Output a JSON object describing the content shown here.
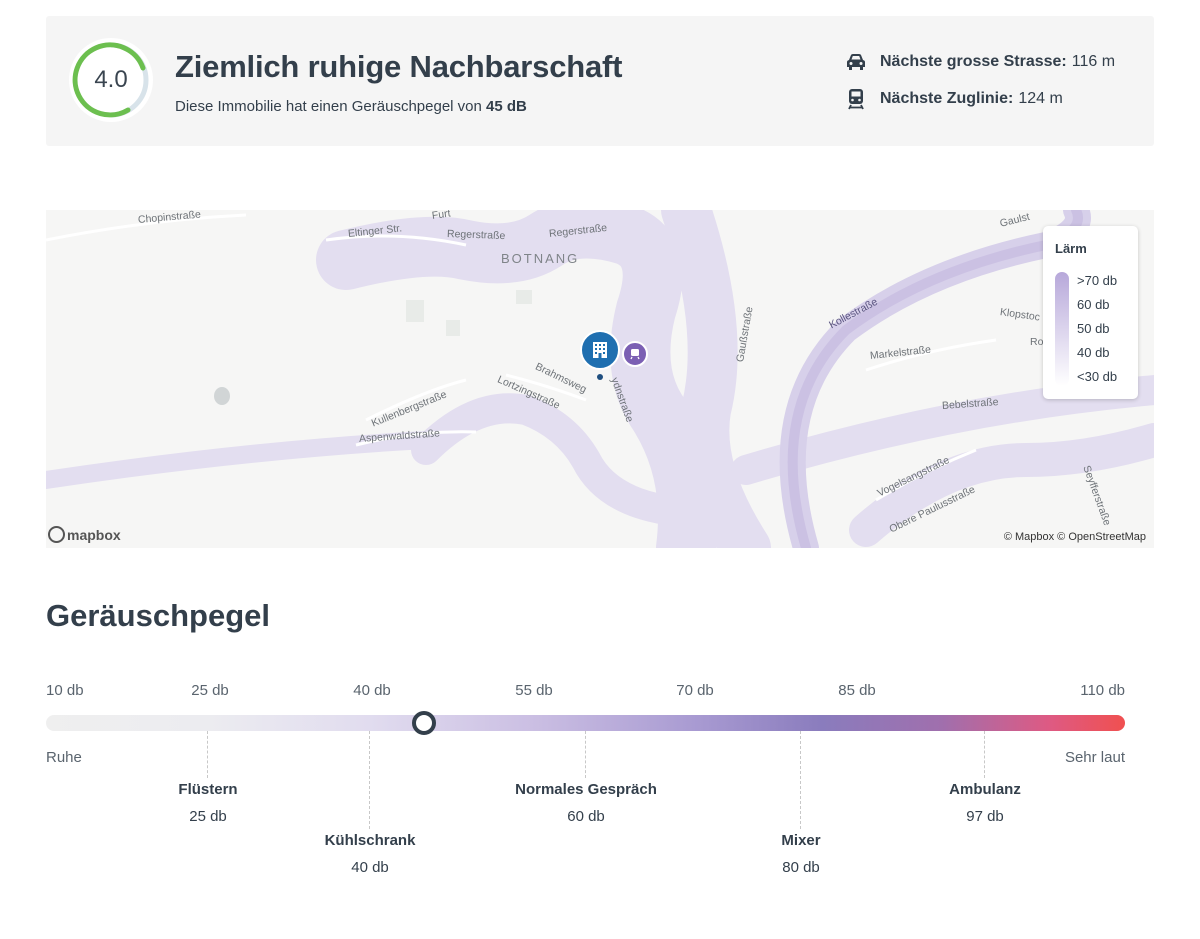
{
  "header": {
    "score": "4.0",
    "title": "Ziemlich ruhige Nachbarschaft",
    "subtitle_prefix": "Diese Immobilie hat einen Geräuschpegel von",
    "subtitle_value": "45 dB",
    "road": {
      "icon": "car-icon",
      "label": "Nächste grosse Strasse:",
      "value": "116 m"
    },
    "rail": {
      "icon": "train-icon",
      "label": "Nächste Zuglinie:",
      "value": "124 m"
    },
    "colors": {
      "score_good": "#6cbf4f",
      "score_rest": "#d8e3ea"
    }
  },
  "map": {
    "district": "BOTNANG",
    "streets": [
      "Chopinstraße",
      "Eltinger Str.",
      "Furt",
      "Regerstraße",
      "Regerstraße",
      "Gaußstraße",
      "Kollestraße",
      "Klopstoc",
      "Markelstraße",
      "Ro",
      "Bebelstraße",
      "Brahmsweg",
      "Lortzingstraße",
      "ydnstraße",
      "Kullenbergstraße",
      "Aspenwaldstraße",
      "Vogelsangstraße",
      "Obere Paulusstraße",
      "Seyfferstraße",
      "Gaulst"
    ],
    "legend": {
      "title": "Lärm",
      "items": [
        ">70 db",
        "60 db",
        "50 db",
        "40 db",
        "<30 db"
      ]
    },
    "logo": "mapbox",
    "attribution": "© Mapbox © OpenStreetMap",
    "pin_icon": "building-icon",
    "train_pin_icon": "train-icon"
  },
  "noise": {
    "title": "Geräuschpegel",
    "ticks": [
      "10 db",
      "25 db",
      "40 db",
      "55 db",
      "70 db",
      "85 db",
      "110 db"
    ],
    "current_db": 45,
    "quiet_label": "Ruhe",
    "loud_label": "Sehr laut",
    "markers": [
      {
        "name": "Flüstern",
        "value": "25 db"
      },
      {
        "name": "Kühlschrank",
        "value": "40 db"
      },
      {
        "name": "Normales Gespräch",
        "value": "60 db"
      },
      {
        "name": "Mixer",
        "value": "80 db"
      },
      {
        "name": "Ambulanz",
        "value": "97 db"
      }
    ]
  }
}
